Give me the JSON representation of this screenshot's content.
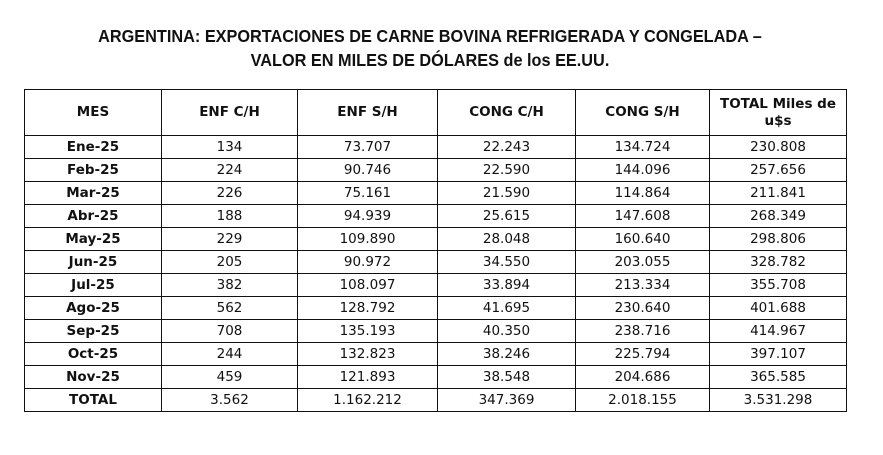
{
  "document": {
    "title_line1": "ARGENTINA: EXPORTACIONES DE CARNE BOVINA REFRIGERADA Y CONGELADA –",
    "title_line2": "VALOR EN MILES DE DÓLARES de los EE.UU."
  },
  "table": {
    "headers": [
      "MES",
      "ENF C/H",
      "ENF S/H",
      "CONG C/H",
      "CONG S/H",
      "TOTAL Miles de u$s"
    ],
    "rows": [
      [
        "Ene-25",
        "134",
        "73.707",
        "22.243",
        "134.724",
        "230.808"
      ],
      [
        "Feb-25",
        "224",
        "90.746",
        "22.590",
        "144.096",
        "257.656"
      ],
      [
        "Mar-25",
        "226",
        "75.161",
        "21.590",
        "114.864",
        "211.841"
      ],
      [
        "Abr-25",
        "188",
        "94.939",
        "25.615",
        "147.608",
        "268.349"
      ],
      [
        "May-25",
        "229",
        "109.890",
        "28.048",
        "160.640",
        "298.806"
      ],
      [
        "Jun-25",
        "205",
        "90.972",
        "34.550",
        "203.055",
        "328.782"
      ],
      [
        "Jul-25",
        "382",
        "108.097",
        "33.894",
        "213.334",
        "355.708"
      ],
      [
        "Ago-25",
        "562",
        "128.792",
        "41.695",
        "230.640",
        "401.688"
      ],
      [
        "Sep-25",
        "708",
        "135.193",
        "40.350",
        "238.716",
        "414.967"
      ],
      [
        "Oct-25",
        "244",
        "132.823",
        "38.246",
        "225.794",
        "397.107"
      ],
      [
        "Nov-25",
        "459",
        "121.893",
        "38.548",
        "204.686",
        "365.585"
      ]
    ],
    "total_row": [
      "TOTAL",
      "3.562",
      "1.162.212",
      "347.369",
      "2.018.155",
      "3.531.298"
    ]
  }
}
